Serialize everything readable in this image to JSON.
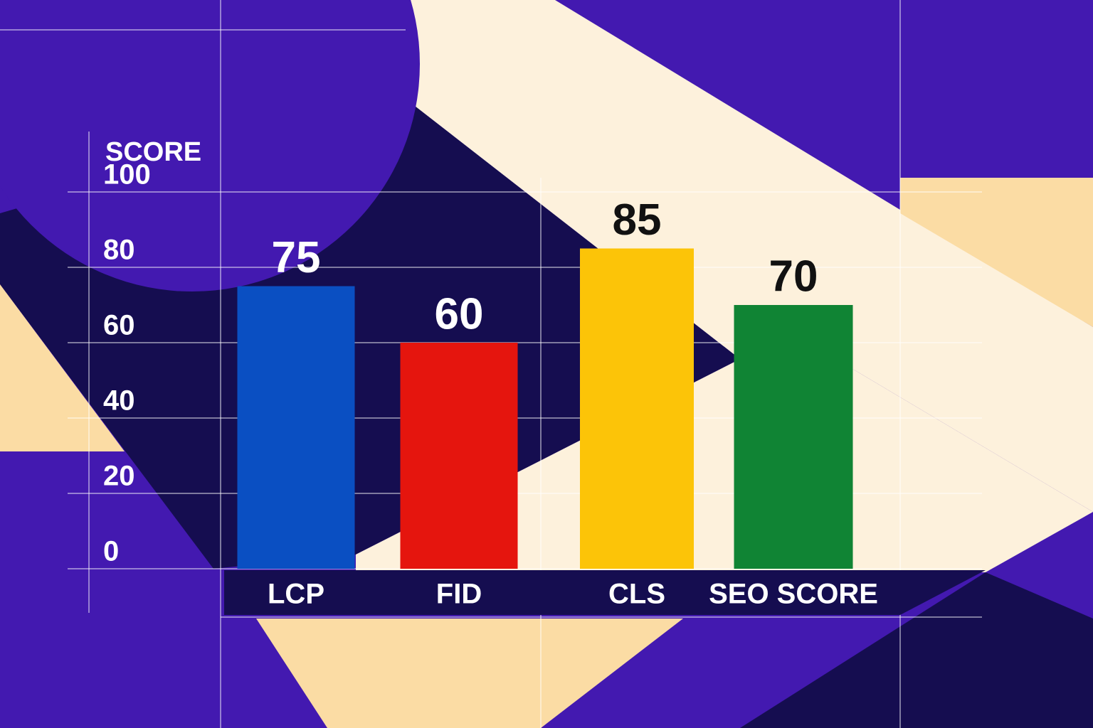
{
  "chart_data": {
    "type": "bar",
    "y_label": "SCORE",
    "categories": [
      "LCP",
      "FID",
      "CLS",
      "SEO SCORE"
    ],
    "series": [
      {
        "values": [
          75,
          60,
          85,
          70
        ],
        "colors": [
          "#0a4fc2",
          "#e5150e",
          "#fcc408",
          "#108434"
        ]
      }
    ],
    "ylim": [
      0,
      100
    ],
    "yticks": [
      0,
      20,
      40,
      60,
      80,
      100
    ],
    "grid": true
  }
}
